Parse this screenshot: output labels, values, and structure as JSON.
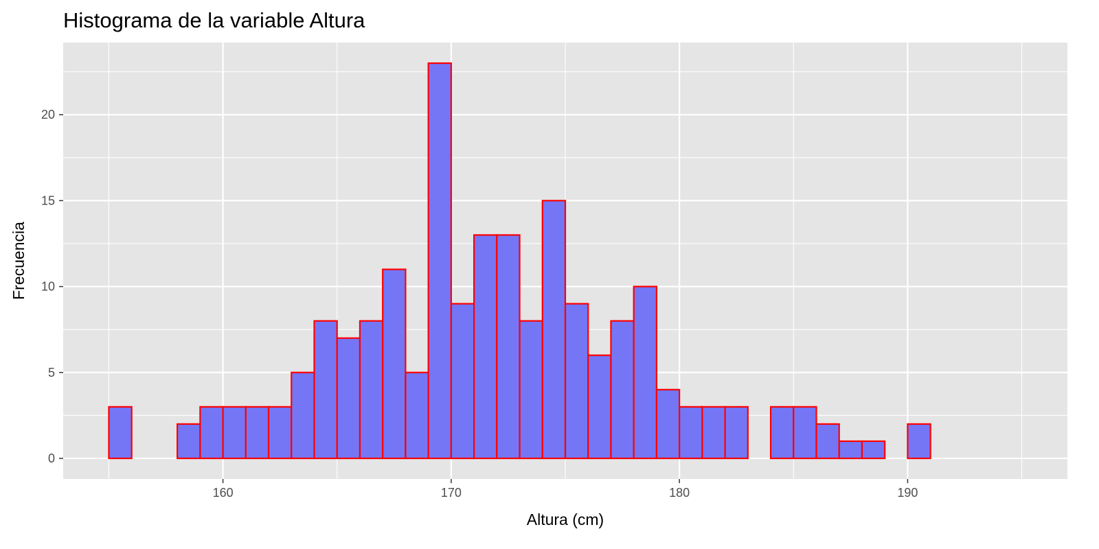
{
  "chart_data": {
    "type": "bar",
    "title": "Histograma de la variable Altura",
    "xlabel": "Altura (cm)",
    "ylabel": "Frecuencia",
    "bin_width": 1,
    "bins": [
      {
        "start": 155,
        "end": 156,
        "count": 3
      },
      {
        "start": 156,
        "end": 157,
        "count": 0
      },
      {
        "start": 157,
        "end": 158,
        "count": 0
      },
      {
        "start": 158,
        "end": 159,
        "count": 2
      },
      {
        "start": 159,
        "end": 160,
        "count": 3
      },
      {
        "start": 160,
        "end": 161,
        "count": 3
      },
      {
        "start": 161,
        "end": 162,
        "count": 3
      },
      {
        "start": 162,
        "end": 163,
        "count": 3
      },
      {
        "start": 163,
        "end": 164,
        "count": 5
      },
      {
        "start": 164,
        "end": 165,
        "count": 8
      },
      {
        "start": 165,
        "end": 166,
        "count": 7
      },
      {
        "start": 166,
        "end": 167,
        "count": 8
      },
      {
        "start": 167,
        "end": 168,
        "count": 11
      },
      {
        "start": 168,
        "end": 169,
        "count": 5
      },
      {
        "start": 169,
        "end": 170,
        "count": 23
      },
      {
        "start": 170,
        "end": 171,
        "count": 9
      },
      {
        "start": 171,
        "end": 172,
        "count": 13
      },
      {
        "start": 172,
        "end": 173,
        "count": 13
      },
      {
        "start": 173,
        "end": 174,
        "count": 8
      },
      {
        "start": 174,
        "end": 175,
        "count": 15
      },
      {
        "start": 175,
        "end": 176,
        "count": 9
      },
      {
        "start": 176,
        "end": 177,
        "count": 6
      },
      {
        "start": 177,
        "end": 178,
        "count": 8
      },
      {
        "start": 178,
        "end": 179,
        "count": 10
      },
      {
        "start": 179,
        "end": 180,
        "count": 4
      },
      {
        "start": 180,
        "end": 181,
        "count": 3
      },
      {
        "start": 181,
        "end": 182,
        "count": 3
      },
      {
        "start": 182,
        "end": 183,
        "count": 3
      },
      {
        "start": 183,
        "end": 184,
        "count": 0
      },
      {
        "start": 184,
        "end": 185,
        "count": 3
      },
      {
        "start": 185,
        "end": 186,
        "count": 3
      },
      {
        "start": 186,
        "end": 187,
        "count": 2
      },
      {
        "start": 187,
        "end": 188,
        "count": 1
      },
      {
        "start": 188,
        "end": 189,
        "count": 1
      },
      {
        "start": 189,
        "end": 190,
        "count": 0
      },
      {
        "start": 190,
        "end": 191,
        "count": 2
      },
      {
        "start": 191,
        "end": 192,
        "count": 0
      },
      {
        "start": 192,
        "end": 193,
        "count": 0
      },
      {
        "start": 193,
        "end": 194,
        "count": 0
      },
      {
        "start": 194,
        "end": 195,
        "count": 0
      }
    ],
    "xlim": [
      153,
      197
    ],
    "ylim": [
      -1.2,
      24.2
    ],
    "x_ticks": [
      160,
      170,
      180,
      190
    ],
    "x_tick_labels": [
      "160",
      "170",
      "180",
      "190"
    ],
    "y_ticks": [
      0,
      5,
      10,
      15,
      20
    ],
    "y_tick_labels": [
      "0",
      "5",
      "10",
      "15",
      "20"
    ],
    "grid": true,
    "bar_fill": "#7576f6",
    "bar_stroke": "#ff0000",
    "panel_background": "#e5e5e5",
    "grid_color": "#ffffff"
  }
}
